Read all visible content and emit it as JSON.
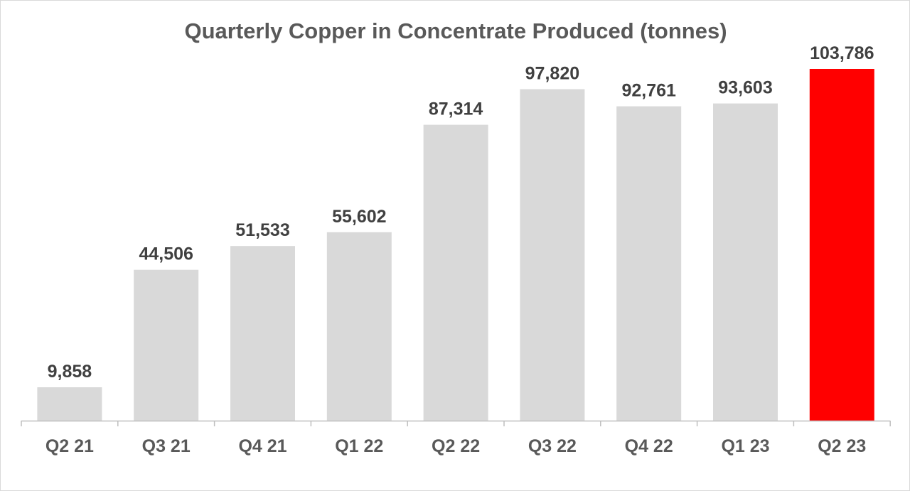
{
  "chart_data": {
    "type": "bar",
    "title": "Quarterly Copper in Concentrate Produced (tonnes)",
    "xlabel": "",
    "ylabel": "",
    "categories": [
      "Q2 21",
      "Q3 21",
      "Q4 21",
      "Q1 22",
      "Q2 22",
      "Q3 22",
      "Q4 22",
      "Q1 23",
      "Q2 23"
    ],
    "values": [
      9858,
      44506,
      51533,
      55602,
      87314,
      97820,
      92761,
      93603,
      103786
    ],
    "value_labels": [
      "9,858",
      "44,506",
      "51,533",
      "55,602",
      "87,314",
      "97,820",
      "92,761",
      "93,603",
      "103,786"
    ],
    "ylim": [
      0,
      110000
    ],
    "grid": false,
    "legend": "none",
    "colors": {
      "default_bar": "#d9d9d9",
      "highlight_bar": "#ff0000",
      "axis": "#bfbfbf"
    },
    "highlight_index": 8
  }
}
